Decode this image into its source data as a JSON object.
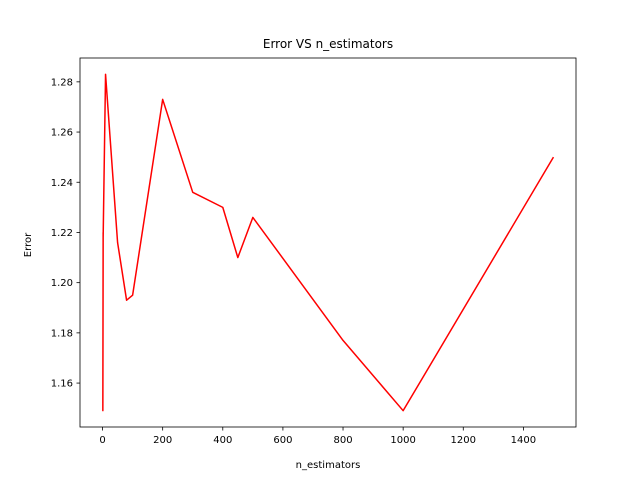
{
  "chart_data": {
    "type": "line",
    "title": "Error VS n_estimators",
    "xlabel": "n_estimators",
    "ylabel": "Error",
    "xlim": [
      -75,
      1575
    ],
    "ylim": [
      1.1425,
      1.2895
    ],
    "xticks": [
      0,
      200,
      400,
      600,
      800,
      1000,
      1200,
      1400
    ],
    "yticks": [
      1.16,
      1.18,
      1.2,
      1.22,
      1.24,
      1.26,
      1.28
    ],
    "ytick_labels": [
      "1.16",
      "1.18",
      "1.20",
      "1.22",
      "1.24",
      "1.26",
      "1.28"
    ],
    "grid": false,
    "series": [
      {
        "color": "#ff0000",
        "x": [
          1,
          2,
          1,
          2,
          1,
          2,
          1,
          2,
          1,
          2,
          1,
          2,
          10,
          50,
          80,
          100,
          200,
          300,
          400,
          450,
          500,
          800,
          1000,
          1500
        ],
        "y": [
          1.149,
          1.22,
          1.15,
          1.219,
          1.151,
          1.218,
          1.152,
          1.217,
          1.15,
          1.219,
          1.149,
          1.218,
          1.283,
          1.216,
          1.193,
          1.195,
          1.273,
          1.236,
          1.23,
          1.21,
          1.226,
          1.177,
          1.149,
          1.25
        ]
      }
    ]
  }
}
